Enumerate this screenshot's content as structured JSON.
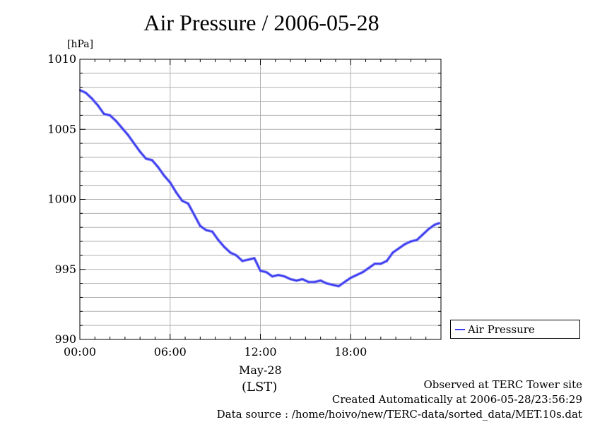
{
  "title": "Air Pressure / 2006-05-28",
  "unit_label": "[hPa]",
  "date_label": "May-28",
  "tz_label": "(LST)",
  "footer": {
    "observed": "Observed at TERC Tower site",
    "created": "Created Automatically at 2006-05-28/23:56:29",
    "source": "Data source : /home/hoivo/new/TERC-data/sorted_data/MET.10s.dat"
  },
  "legend": {
    "label": "Air Pressure"
  },
  "colors": {
    "series": "#3b3bf0",
    "grid": "#b0b0b0",
    "axis": "#000000"
  },
  "chart_data": {
    "type": "line",
    "title": "Air Pressure / 2006-05-28",
    "ylabel": "[hPa]",
    "xlabel": "May-28 (LST)",
    "xlim": [
      0,
      24
    ],
    "ylim": [
      990,
      1010
    ],
    "yticks": [
      "990",
      "995",
      "1000",
      "1005",
      "1010"
    ],
    "xticks": [
      {
        "h": 0,
        "label": "00:00"
      },
      {
        "h": 6,
        "label": "06:00"
      },
      {
        "h": 12,
        "label": "12:00"
      },
      {
        "h": 18,
        "label": "18:00"
      }
    ],
    "grid": true,
    "legend_position": "right-bottom",
    "series": [
      {
        "name": "Air Pressure",
        "x": [
          0.0,
          0.4,
          0.8,
          1.2,
          1.6,
          2.0,
          2.4,
          2.8,
          3.2,
          3.6,
          4.0,
          4.4,
          4.8,
          5.2,
          5.6,
          6.0,
          6.4,
          6.8,
          7.2,
          7.6,
          8.0,
          8.4,
          8.8,
          9.2,
          9.6,
          10.0,
          10.4,
          10.8,
          11.2,
          11.6,
          12.0,
          12.4,
          12.8,
          13.2,
          13.6,
          14.0,
          14.4,
          14.8,
          15.2,
          15.6,
          16.0,
          16.4,
          16.8,
          17.2,
          17.6,
          18.0,
          18.4,
          18.8,
          19.2,
          19.6,
          20.0,
          20.4,
          20.8,
          21.2,
          21.6,
          22.0,
          22.4,
          22.8,
          23.2,
          23.6,
          23.9
        ],
        "values": [
          1007.8,
          1007.6,
          1007.2,
          1006.7,
          1006.1,
          1006.0,
          1005.6,
          1005.1,
          1004.6,
          1004.0,
          1003.4,
          1002.9,
          1002.8,
          1002.3,
          1001.7,
          1001.2,
          1000.5,
          999.9,
          999.7,
          998.9,
          998.1,
          997.8,
          997.7,
          997.1,
          996.6,
          996.2,
          996.0,
          995.6,
          995.7,
          995.8,
          994.9,
          994.8,
          994.5,
          994.6,
          994.5,
          994.3,
          994.2,
          994.3,
          994.1,
          994.1,
          994.2,
          994.0,
          993.9,
          993.8,
          994.1,
          994.4,
          994.6,
          994.8,
          995.1,
          995.4,
          995.4,
          995.6,
          996.2,
          996.5,
          996.8,
          997.0,
          997.1,
          997.5,
          997.9,
          998.2,
          998.3
        ]
      }
    ]
  }
}
